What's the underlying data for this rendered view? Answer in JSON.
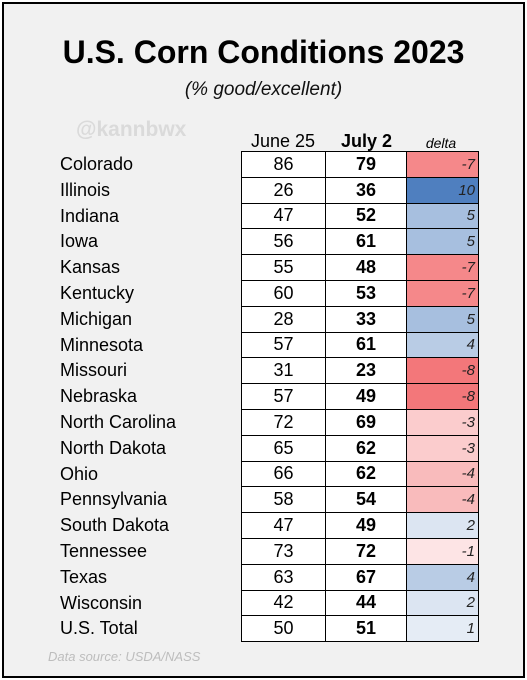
{
  "title": "U.S. Corn Conditions 2023",
  "subtitle": "(% good/excellent)",
  "watermark": "@kannbwx",
  "source": "Data source: USDA/NASS",
  "colors": {
    "positive_strong": "#4f7fbf",
    "positive_light": "#a9bfdf",
    "negative_strong": "#f26b6e",
    "negative_light": "#f8b8b9"
  },
  "chart_data": {
    "type": "table",
    "columns": [
      "June 25",
      "July 2",
      "delta"
    ],
    "rows": [
      {
        "state": "Colorado",
        "june25": 86,
        "july2": 79,
        "delta": -7
      },
      {
        "state": "Illinois",
        "june25": 26,
        "july2": 36,
        "delta": 10
      },
      {
        "state": "Indiana",
        "june25": 47,
        "july2": 52,
        "delta": 5
      },
      {
        "state": "Iowa",
        "june25": 56,
        "july2": 61,
        "delta": 5
      },
      {
        "state": "Kansas",
        "june25": 55,
        "july2": 48,
        "delta": -7
      },
      {
        "state": "Kentucky",
        "june25": 60,
        "july2": 53,
        "delta": -7
      },
      {
        "state": "Michigan",
        "june25": 28,
        "july2": 33,
        "delta": 5
      },
      {
        "state": "Minnesota",
        "june25": 57,
        "july2": 61,
        "delta": 4
      },
      {
        "state": "Missouri",
        "june25": 31,
        "july2": 23,
        "delta": -8
      },
      {
        "state": "Nebraska",
        "june25": 57,
        "july2": 49,
        "delta": -8
      },
      {
        "state": "North Carolina",
        "june25": 72,
        "july2": 69,
        "delta": -3
      },
      {
        "state": "North Dakota",
        "june25": 65,
        "july2": 62,
        "delta": -3
      },
      {
        "state": "Ohio",
        "june25": 66,
        "july2": 62,
        "delta": -4
      },
      {
        "state": "Pennsylvania",
        "june25": 58,
        "july2": 54,
        "delta": -4
      },
      {
        "state": "South Dakota",
        "june25": 47,
        "july2": 49,
        "delta": 2
      },
      {
        "state": "Tennessee",
        "june25": 73,
        "july2": 72,
        "delta": -1
      },
      {
        "state": "Texas",
        "june25": 63,
        "july2": 67,
        "delta": 4
      },
      {
        "state": "Wisconsin",
        "june25": 42,
        "july2": 44,
        "delta": 2
      },
      {
        "state": "U.S. Total",
        "june25": 50,
        "july2": 51,
        "delta": 1
      }
    ]
  }
}
